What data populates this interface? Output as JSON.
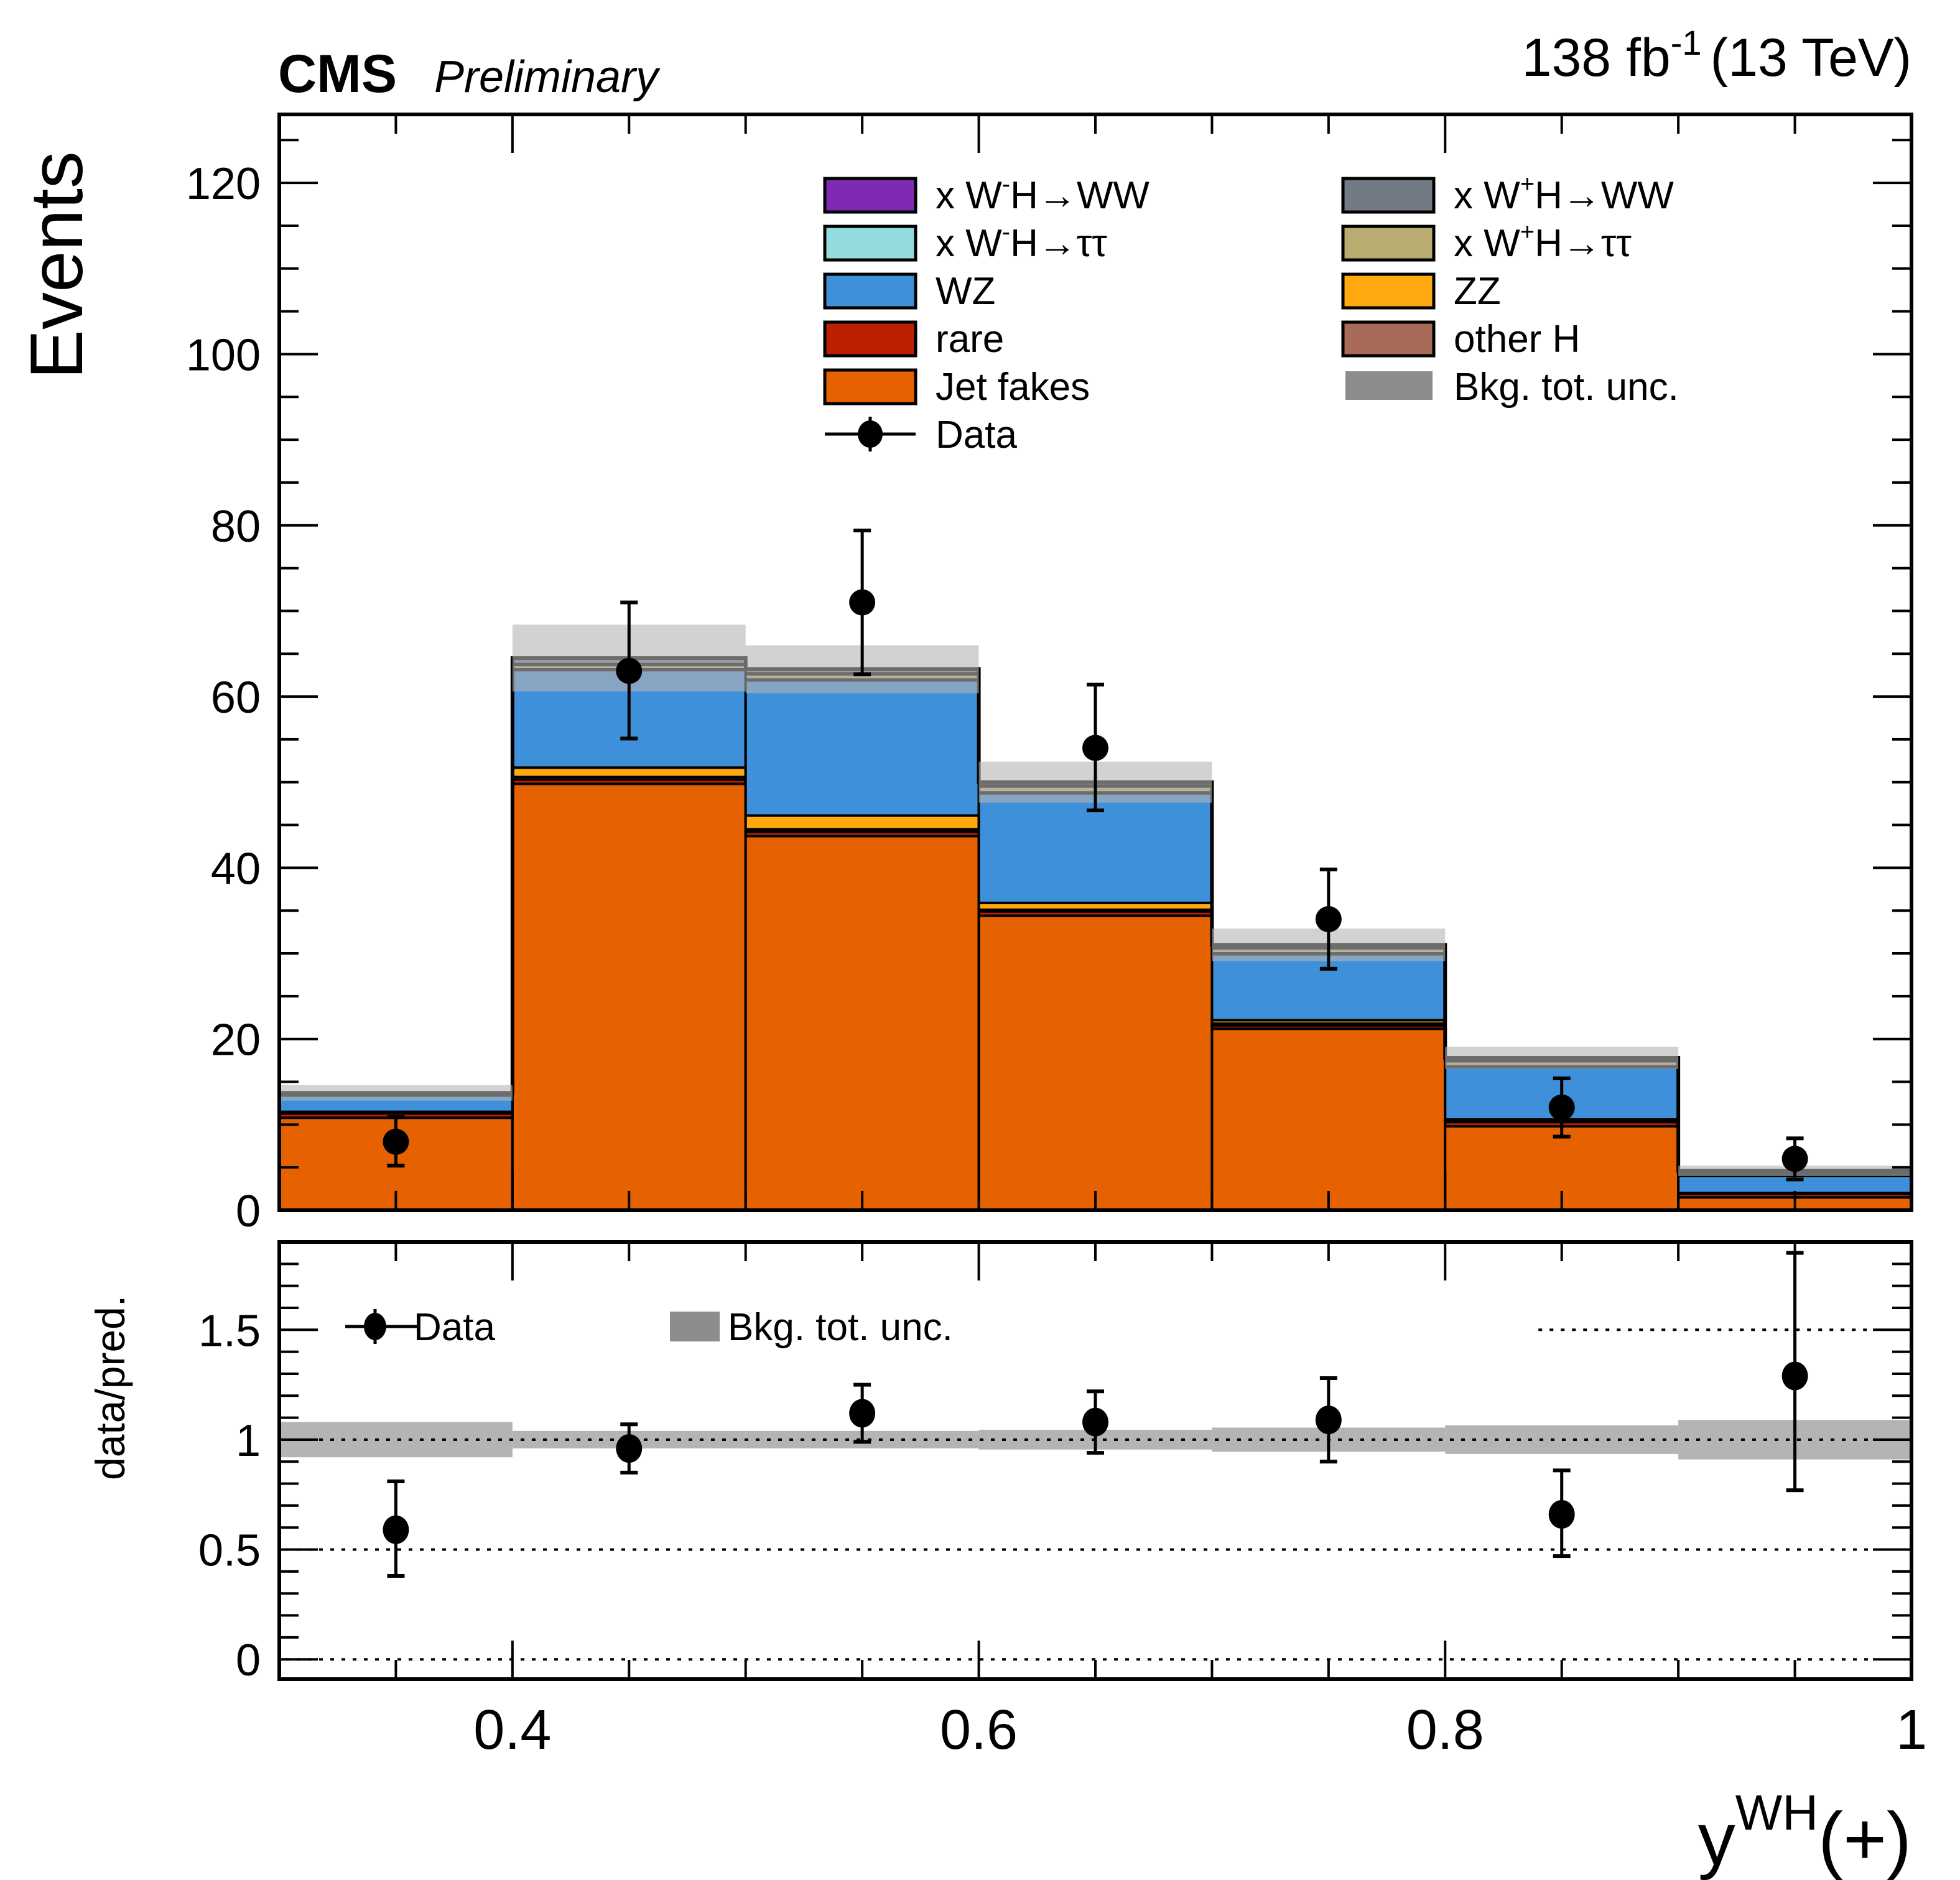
{
  "header": {
    "experiment": "CMS",
    "status": "Preliminary",
    "lumi_text": "138 fb",
    "lumi_exp": "-1",
    "energy_text": "(13 TeV)"
  },
  "colors": {
    "WmH_WW": "#7f2ab5",
    "WmH_tautau": "#94dbde",
    "WZ": "#3f90da",
    "rare": "#bd1f01",
    "jetfakes": "#e66100",
    "WpH_WW": "#717a85",
    "WpH_tautau": "#b9ac70",
    "ZZ": "#ffa90e",
    "otherH": "#a96b59",
    "unc": "#8c8c8c",
    "unc_band": "#b4b4b4",
    "data": "#000000"
  },
  "chart_data": [
    {
      "type": "bar",
      "subtype": "stacked-histogram",
      "panel": "main",
      "xlabel": "y",
      "xlabel_sup": "WH",
      "xlabel_suffix": "(+)",
      "ylabel": "Events",
      "xlim": [
        0.3,
        1.0
      ],
      "ylim": [
        0,
        128
      ],
      "yticks": [
        0,
        20,
        40,
        60,
        80,
        100,
        120
      ],
      "ytick_labels": [
        "0",
        "20",
        "40",
        "60",
        "80",
        "100",
        "120"
      ],
      "bin_edges": [
        0.3,
        0.4,
        0.5,
        0.6,
        0.7,
        0.8,
        0.9,
        1.0
      ],
      "stack_order": [
        "jetfakes",
        "rare",
        "otherH",
        "ZZ",
        "WZ",
        "WmH_tautau",
        "WpH_tautau",
        "WmH_WW",
        "WpH_WW"
      ],
      "series": [
        {
          "key": "jetfakes",
          "name": "Jet fakes",
          "values": [
            10.8,
            49.8,
            43.7,
            34.4,
            21.2,
            9.8,
            1.5
          ]
        },
        {
          "key": "rare",
          "name": "rare",
          "values": [
            0.5,
            0.5,
            0.5,
            0.5,
            0.4,
            0.5,
            0.4
          ]
        },
        {
          "key": "otherH",
          "name": "other H",
          "values": [
            0.1,
            0.3,
            0.3,
            0.2,
            0.2,
            0.1,
            0.05
          ]
        },
        {
          "key": "ZZ",
          "name": "ZZ",
          "values": [
            0.1,
            1.1,
            1.6,
            0.8,
            0.4,
            0.2,
            0.05
          ]
        },
        {
          "key": "WZ",
          "name": "WZ",
          "values": [
            1.9,
            11.4,
            15.8,
            12.8,
            7.7,
            6.1,
            2.0
          ]
        },
        {
          "key": "WmH_tautau",
          "name": "x W⁻H→ττ",
          "values": [
            0.05,
            0.1,
            0.1,
            0.1,
            0.1,
            0.1,
            0.05
          ]
        },
        {
          "key": "WpH_tautau",
          "name": "x W⁺H→ττ",
          "values": [
            0.1,
            0.5,
            0.6,
            0.7,
            0.6,
            0.6,
            0.3
          ]
        },
        {
          "key": "WmH_WW",
          "name": "x W⁻H→WW",
          "values": [
            0.05,
            0.1,
            0.1,
            0.1,
            0.1,
            0.1,
            0.05
          ]
        },
        {
          "key": "WpH_WW",
          "name": "x W⁺H→WW",
          "values": [
            0.1,
            0.7,
            0.5,
            0.4,
            0.3,
            0.3,
            0.2
          ]
        }
      ],
      "total_bkg": [
        13.7,
        64.5,
        63.2,
        50.0,
        31.0,
        17.8,
        4.6
      ],
      "bkg_unc": [
        0.9,
        3.9,
        2.8,
        2.4,
        1.9,
        1.3,
        0.6
      ],
      "data": {
        "name": "Data",
        "x": [
          0.35,
          0.45,
          0.55,
          0.65,
          0.75,
          0.85,
          0.95
        ],
        "y": [
          8,
          63,
          71,
          54,
          34,
          12,
          6
        ],
        "err_low": [
          2.8,
          7.9,
          8.4,
          7.3,
          5.8,
          3.4,
          2.4
        ],
        "err_high": [
          2.9,
          8.0,
          8.4,
          7.4,
          5.8,
          3.4,
          2.4
        ]
      }
    },
    {
      "type": "scatter",
      "panel": "ratio",
      "ylabel": "data/pred.",
      "xlim": [
        0.3,
        1.0
      ],
      "ylim": [
        -0.09,
        1.9
      ],
      "yticks": [
        0,
        0.5,
        1,
        1.5
      ],
      "ytick_labels": [
        "0",
        "0.5",
        "1",
        "1.5"
      ],
      "xticks": [
        0.4,
        0.6,
        0.8,
        1.0
      ],
      "xtick_labels": [
        "0.4",
        "0.6",
        "0.8",
        "1"
      ],
      "reference_lines": [
        0,
        0.5,
        1,
        1.5
      ],
      "bin_edges": [
        0.3,
        0.4,
        0.5,
        0.6,
        0.7,
        0.8,
        0.9,
        1.0
      ],
      "unc_band_halfwidth": [
        0.08,
        0.04,
        0.04,
        0.045,
        0.055,
        0.065,
        0.09
      ],
      "data": {
        "x": [
          0.35,
          0.45,
          0.55,
          0.65,
          0.75,
          0.85,
          0.95
        ],
        "y": [
          0.59,
          0.96,
          1.12,
          1.08,
          1.09,
          0.66,
          1.29
        ],
        "err_low": [
          0.21,
          0.11,
          0.13,
          0.14,
          0.19,
          0.19,
          0.52
        ],
        "err_high": [
          0.22,
          0.11,
          0.13,
          0.14,
          0.19,
          0.2,
          0.56
        ]
      },
      "legend": [
        {
          "key": "data",
          "label": "Data"
        },
        {
          "key": "unc",
          "label": "Bkg. tot. unc."
        }
      ]
    }
  ],
  "legend_main": {
    "left": [
      {
        "key": "WmH_WW",
        "prefix": "x W",
        "sup": "-",
        "suffix": "H→WW"
      },
      {
        "key": "WmH_tautau",
        "prefix": "x W",
        "sup": "-",
        "suffix": "H→ττ"
      },
      {
        "key": "WZ",
        "prefix": "WZ",
        "sup": "",
        "suffix": ""
      },
      {
        "key": "rare",
        "prefix": "rare",
        "sup": "",
        "suffix": ""
      },
      {
        "key": "jetfakes",
        "prefix": "Jet fakes",
        "sup": "",
        "suffix": ""
      },
      {
        "key": "data",
        "prefix": "Data",
        "sup": "",
        "suffix": ""
      }
    ],
    "right": [
      {
        "key": "WpH_WW",
        "prefix": "x W",
        "sup": "+",
        "suffix": "H→WW"
      },
      {
        "key": "WpH_tautau",
        "prefix": "x W",
        "sup": "+",
        "suffix": "H→ττ"
      },
      {
        "key": "ZZ",
        "prefix": "ZZ",
        "sup": "",
        "suffix": ""
      },
      {
        "key": "otherH",
        "prefix": "other H",
        "sup": "",
        "suffix": ""
      },
      {
        "key": "unc",
        "prefix": "Bkg. tot. unc.",
        "sup": "",
        "suffix": ""
      }
    ]
  }
}
